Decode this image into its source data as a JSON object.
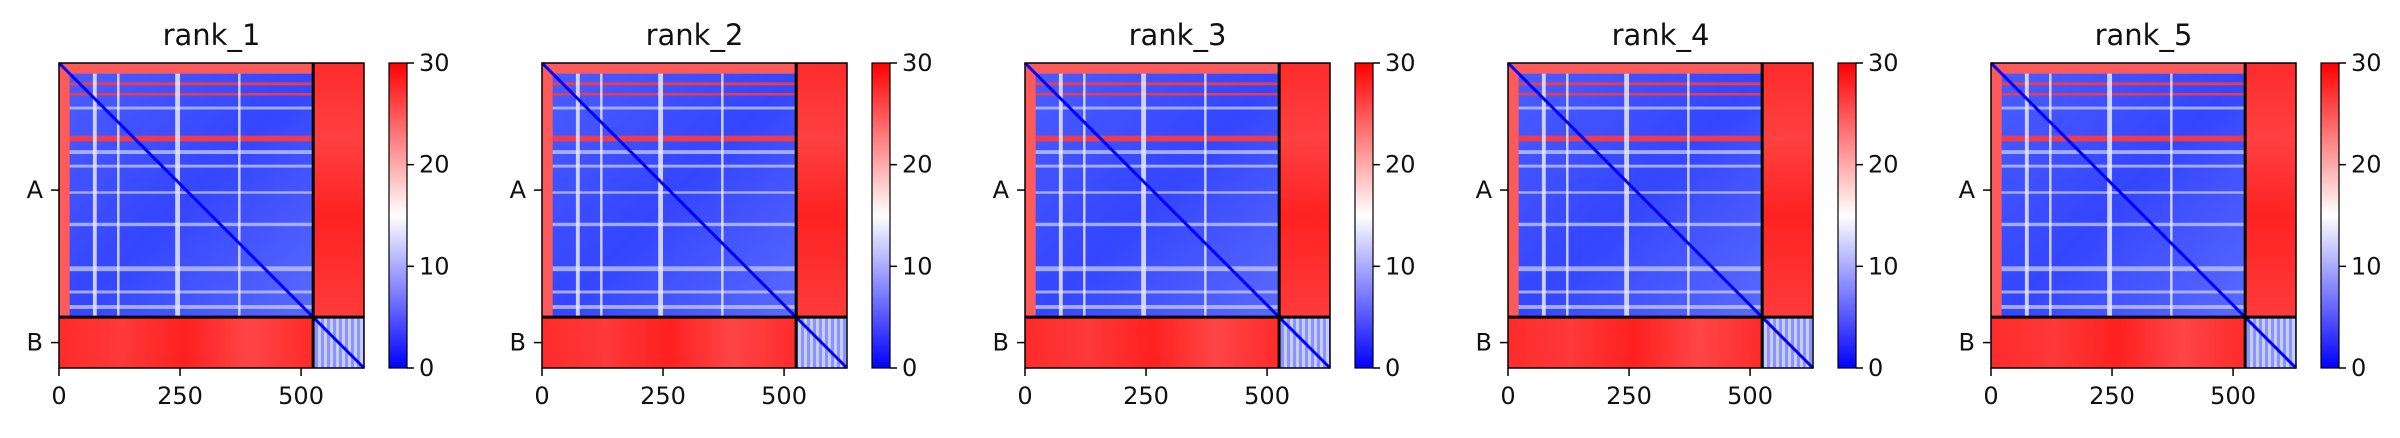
{
  "chart_data": {
    "type": "heatmap",
    "colormap": [
      "#0000ff",
      "#ffffff",
      "#ff0000"
    ],
    "x_range": [
      0,
      630
    ],
    "chain_boundary": 525,
    "panels": [
      {
        "title": "rank_1"
      },
      {
        "title": "rank_2"
      },
      {
        "title": "rank_3"
      },
      {
        "title": "rank_4"
      },
      {
        "title": "rank_5"
      }
    ],
    "x_ticks": [
      0,
      250,
      500
    ],
    "y_tick_labels": [
      "A",
      "B"
    ],
    "colorbar": {
      "ticks": [
        0,
        10,
        20,
        30
      ],
      "range": [
        0,
        30
      ]
    }
  }
}
